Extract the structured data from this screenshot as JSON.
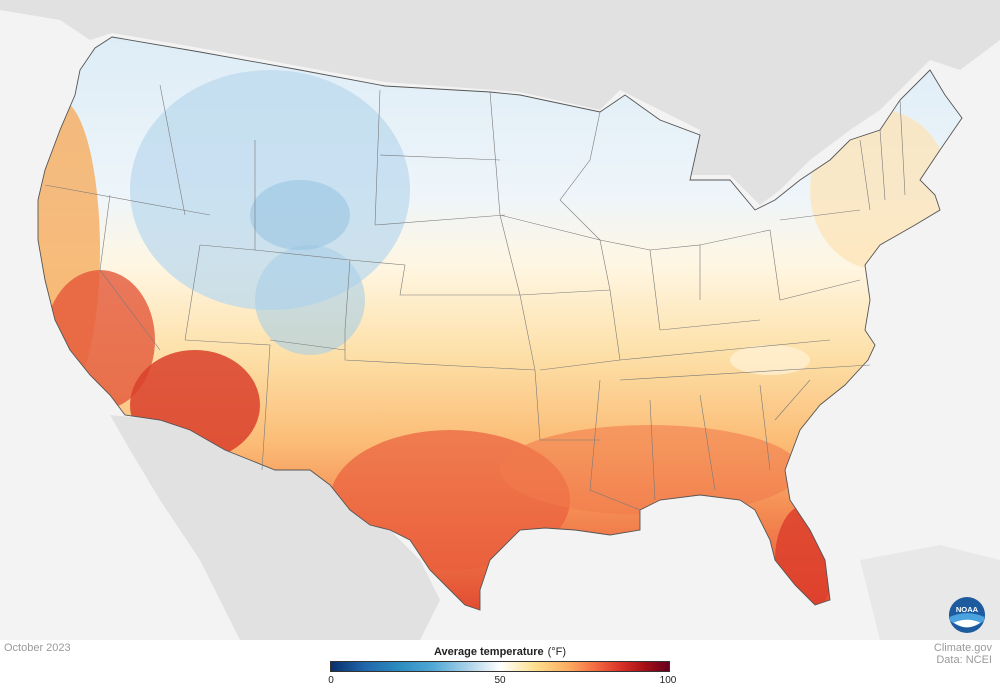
{
  "map": {
    "period": "October 2023",
    "legend": {
      "title": "Average temperature",
      "unit": "(°F)",
      "ticks": [
        "0",
        "50",
        "100"
      ],
      "range": [
        0,
        100
      ],
      "colors": [
        "#08306b",
        "#2166ac",
        "#4fa8d6",
        "#ffffff",
        "#fdae61",
        "#d73027",
        "#67001f"
      ]
    },
    "credit": {
      "line1": "Climate.gov",
      "line2": "Data: NCEI"
    },
    "logo": {
      "icon": "noaa-logo-icon",
      "text": "NOAA"
    },
    "palette": {
      "background": "#f3f3f3",
      "land_outside": "#e0e0e0",
      "state_borders": "#7a7a7a"
    }
  }
}
